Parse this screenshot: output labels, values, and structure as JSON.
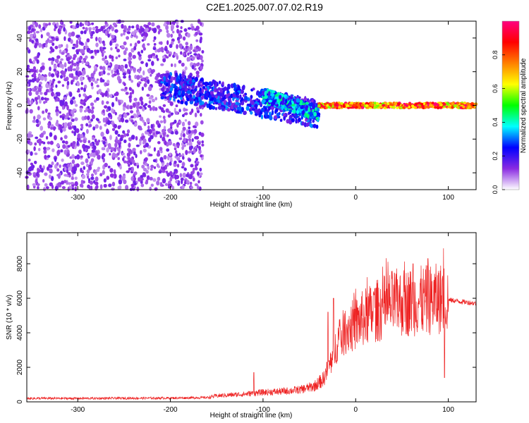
{
  "title": "C2E1.2025.007.07.02.R19",
  "chart_data": [
    {
      "type": "heatmap",
      "xlabel": "Height of straight line (km)",
      "ylabel": "Frequency (Hz)",
      "xlim": [
        -355,
        130
      ],
      "ylim": [
        -50,
        50
      ],
      "x_ticks": [
        -300,
        -200,
        -100,
        0,
        100
      ],
      "y_ticks": [
        -40,
        -20,
        0,
        20,
        40
      ],
      "colorbar": {
        "label": "Normalized spectral amplitude",
        "range": [
          0,
          1
        ],
        "ticks": [
          0.0,
          0.2,
          0.4,
          0.6,
          0.8
        ],
        "colormap": [
          "#ffffff",
          "#8a2be2",
          "#0000ff",
          "#00ffff",
          "#00ff00",
          "#ffff00",
          "#ff8000",
          "#ff0000",
          "#ff0080"
        ]
      },
      "regions": [
        {
          "x": [
            -355,
            -165
          ],
          "freq_center": 0,
          "freq_halfwidth": 50,
          "amplitude": 0.12
        },
        {
          "x": [
            -210,
            -40
          ],
          "freq_center_start": 12,
          "freq_center_end": -5,
          "freq_halfwidth": 8,
          "amplitude": 0.25
        },
        {
          "x": [
            -100,
            -40
          ],
          "freq_center_start": 6,
          "freq_center_end": -5,
          "freq_halfwidth": 4,
          "amplitude": 0.35
        },
        {
          "x": [
            -40,
            130
          ],
          "freq_center": 0,
          "freq_halfwidth": 1.5,
          "amplitude": 0.9
        }
      ],
      "grid": false
    },
    {
      "type": "line",
      "xlabel": "Height of straight line (km)",
      "ylabel": "SNR (10 * v/v)",
      "xlim": [
        -355,
        130
      ],
      "ylim": [
        0,
        9800
      ],
      "x_ticks": [
        -300,
        -200,
        -100,
        0,
        100
      ],
      "y_ticks": [
        0,
        2000,
        4000,
        6000,
        8000
      ],
      "color": "#ee2222",
      "envelope": {
        "x": [
          -355,
          -300,
          -200,
          -160,
          -150,
          -120,
          -100,
          -80,
          -60,
          -45,
          -35,
          -25,
          -20,
          -10,
          0,
          10,
          20,
          40,
          60,
          80,
          95,
          100,
          130
        ],
        "y": [
          200,
          200,
          220,
          250,
          350,
          450,
          550,
          600,
          700,
          900,
          1300,
          2500,
          3500,
          4200,
          4500,
          4900,
          5200,
          5700,
          5800,
          5900,
          6000,
          5900,
          5700
        ]
      },
      "spikes": [
        {
          "x": -110,
          "y": 1700
        },
        {
          "x": -30,
          "y": 5200
        },
        {
          "x": -24,
          "y": 6000
        },
        {
          "x": 20,
          "y": 6200
        },
        {
          "x": 62,
          "y": 8000
        },
        {
          "x": 78,
          "y": 8300
        },
        {
          "x": 96,
          "y": 9800
        },
        {
          "x": 96,
          "y": 1400
        }
      ],
      "grid": false
    }
  ]
}
